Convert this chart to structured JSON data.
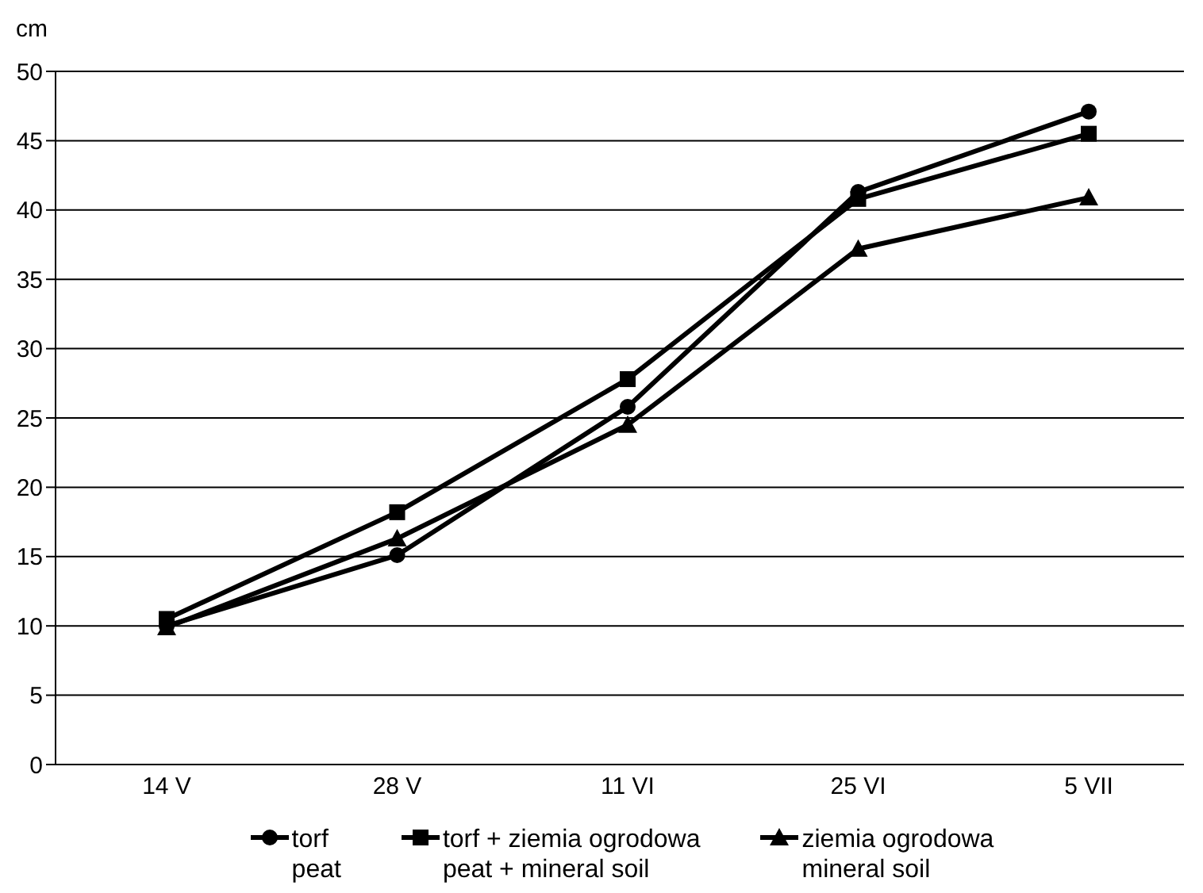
{
  "chart_data": {
    "type": "line",
    "ylabel": "cm",
    "categories": [
      "14 V",
      "28 V",
      "11 VI",
      "25 VI",
      "5 VII"
    ],
    "series": [
      {
        "name": "torf\npeat",
        "color": "#000000",
        "marker": "circle",
        "values": [
          10.0,
          15.1,
          25.8,
          41.3,
          47.1
        ]
      },
      {
        "name": "torf + ziemia ogrodowa\npeat + mineral soil",
        "color": "#000000",
        "marker": "square",
        "values": [
          10.5,
          18.2,
          27.8,
          40.8,
          45.5
        ]
      },
      {
        "name": "ziemia ogrodowa\nmineral soil",
        "color": "#000000",
        "marker": "triangle",
        "values": [
          9.9,
          16.3,
          24.5,
          37.2,
          40.9
        ]
      }
    ],
    "ylim": [
      0,
      50
    ],
    "yticks": [
      0,
      5,
      10,
      15,
      20,
      25,
      30,
      35,
      40,
      45,
      50
    ],
    "grid": "y",
    "legend": "bottom",
    "line_style": "solid"
  }
}
